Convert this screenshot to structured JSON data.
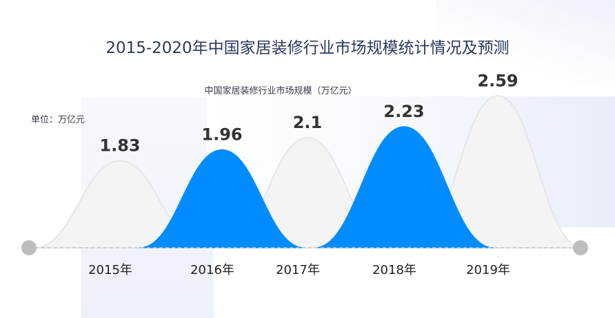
{
  "page": {
    "title": "2015-2020年中国家居装修行业市场规模统计情况及预测",
    "subtitle": "中国家居装修行业市场规模（万亿元）",
    "unit": "单位：万亿元"
  },
  "colors": {
    "accent": "#008cff",
    "peak_fill": "#f4f4f5",
    "peak_stroke": "#e6e6e8",
    "baseline": "#c7c7c7",
    "endpoint": "#bdbdbd",
    "value_text": "#333333"
  },
  "chart_data": {
    "type": "area",
    "title": "中国家居装修行业市场规模（万亿元）",
    "unit": "万亿元",
    "categories": [
      "2015年",
      "2016年",
      "2017年",
      "2018年",
      "2019年"
    ],
    "values": [
      1.83,
      1.96,
      2.1,
      2.23,
      2.59
    ],
    "highlighted": [
      false,
      true,
      false,
      true,
      false
    ],
    "grid": false,
    "legend": "none"
  }
}
